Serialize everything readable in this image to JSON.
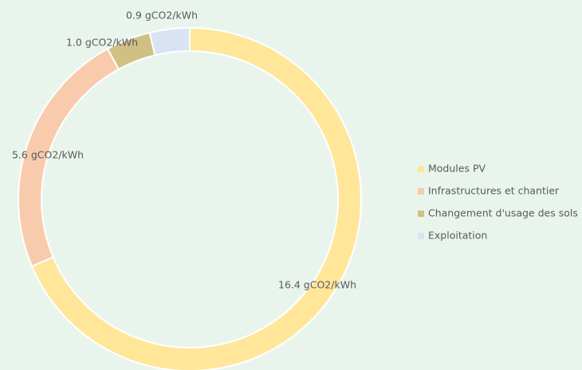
{
  "chart_data": {
    "type": "donut",
    "categories": [
      "Modules PV",
      "Infrastructures et chantier",
      "Changement d'usage des sols",
      "Exploitation"
    ],
    "values": [
      16.4,
      5.6,
      1.0,
      0.9
    ],
    "value_labels": [
      "16.4 gCO2/kWh",
      "5.6 gCO2/kWh",
      "1.0 gCO2/kWh",
      "0.9 gCO2/kWh"
    ],
    "colors": [
      "#ffe699",
      "#f8cbad",
      "#d1c084",
      "#dae3f3"
    ],
    "legend": "right"
  }
}
